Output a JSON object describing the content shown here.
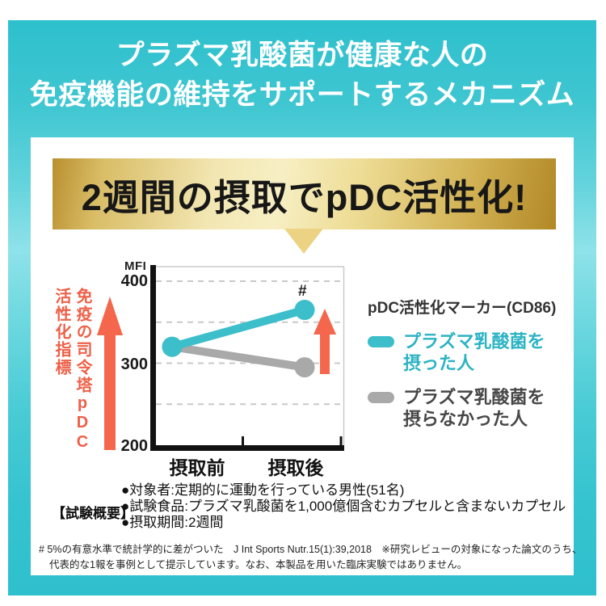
{
  "header": {
    "title_line1": "プラズマ乳酸菌が健康な人の",
    "title_line2": "免疫機能の維持をサポートするメカニズム"
  },
  "banner": {
    "text": "2週間の摂取でpDC活性化!"
  },
  "chart_data": {
    "type": "line",
    "title": "2週間の摂取でpDC活性化!",
    "unit": "MFI",
    "categories": [
      "摂取前",
      "摂取後"
    ],
    "series": [
      {
        "name": "プラズマ乳酸菌を摂った人",
        "values": [
          320,
          365
        ],
        "color": "#3cbecb",
        "annotation": "#"
      },
      {
        "name": "プラズマ乳酸菌を摂らなかった人",
        "values": [
          320,
          295
        ],
        "color": "#a9a9a9"
      }
    ],
    "ylim": [
      200,
      400
    ],
    "yticks": [
      400,
      300,
      200
    ],
    "gridlines": [
      400,
      350,
      300,
      250
    ],
    "ylabel": "免疫の司令塔pDC活性化指標",
    "ylabel_right_column": "免疫の司令塔pDC",
    "ylabel_left_column": "活性化指標",
    "grid": true,
    "legend_position": "right"
  },
  "legend": {
    "title": "pDC活性化マーカー(CD86)",
    "items": [
      {
        "label": "プラズマ乳酸菌を\n摂った人",
        "color": "#2cb3c4"
      },
      {
        "label": "プラズマ乳酸菌を\n摂らなかった人",
        "color": "#474747"
      }
    ]
  },
  "summary": {
    "label": "【試験概要】",
    "items": [
      "●対象者:定期的に運動を行っている男性(51名)",
      "●試験食品:プラズマ乳酸菌を1,000億個含むカプセルと含まないカプセル",
      "●摂取期間:2週間"
    ]
  },
  "footnote": {
    "line1": "# 5%の有意水準で統計学的に差がついた　J Int Sports Nutr.15(1):39,2018　※研究レビューの対象になった論文のうち、",
    "line2": "代表的な1報を事例として提示しています。なお、本製品を用いた臨床実験ではありません。"
  },
  "palette": {
    "frame_teal": "#3cc3ce",
    "banner_gold": "#ecd384",
    "accent_orange": "#f4674c",
    "taken_teal": "#3cbecb",
    "control_gray": "#a9a9a9",
    "vertical_label_red": "#ee6048"
  }
}
